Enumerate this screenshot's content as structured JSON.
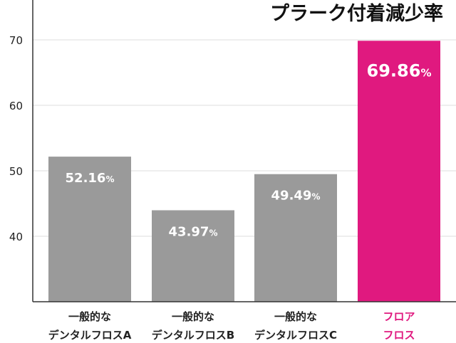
{
  "chart_data": {
    "type": "bar",
    "title": "プラーク付着減少率",
    "categories": [
      [
        "一般的な",
        "デンタルフロスA"
      ],
      [
        "一般的な",
        "デンタルフロスB"
      ],
      [
        "一般的な",
        "デンタルフロスC"
      ],
      [
        "フロア",
        "フロス"
      ]
    ],
    "values": [
      52.16,
      43.97,
      49.49,
      69.86
    ],
    "value_labels": [
      "52.16",
      "43.97",
      "49.49",
      "69.86"
    ],
    "value_unit": "%",
    "yticks": [
      "40",
      "50",
      "60",
      "70"
    ],
    "ylim": [
      30,
      70
    ],
    "grid": true,
    "colors": {
      "default_bar": "#9a9a9a",
      "highlight_bar": "#e0197f",
      "highlight_text": "#e0197f",
      "bar_label_text": "#ffffff",
      "grid": "#dddddd"
    },
    "highlight_index": 3
  }
}
